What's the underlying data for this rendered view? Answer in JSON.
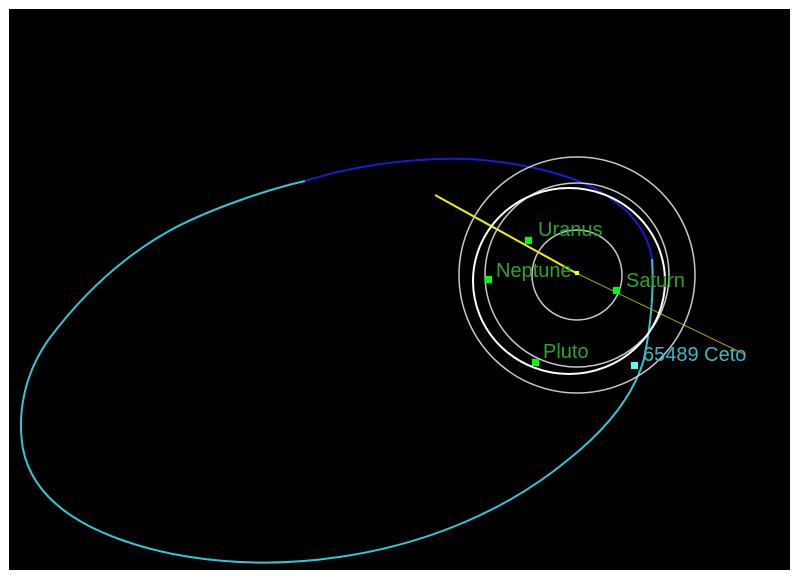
{
  "colors": {
    "background": "#000000",
    "frame": "#ffffff",
    "planet_orbit": "#c8c8c8",
    "pluto_orbit": "#ffffff",
    "planet_marker": "#00ff00",
    "planet_label": "#2aa52a",
    "object_orbit_below": "#2ec8d8",
    "object_orbit_above": "#1a1ad0",
    "object_marker": "#55ffff",
    "object_label": "#3ab8c8",
    "node_line_near": "#f0f000",
    "node_line_far": "#a0a000",
    "sun": "#ffff00"
  },
  "diagram": {
    "planets": [
      {
        "name": "Saturn"
      },
      {
        "name": "Uranus"
      },
      {
        "name": "Neptune"
      },
      {
        "name": "Pluto"
      }
    ],
    "object": {
      "name": "65489 Ceto"
    }
  }
}
